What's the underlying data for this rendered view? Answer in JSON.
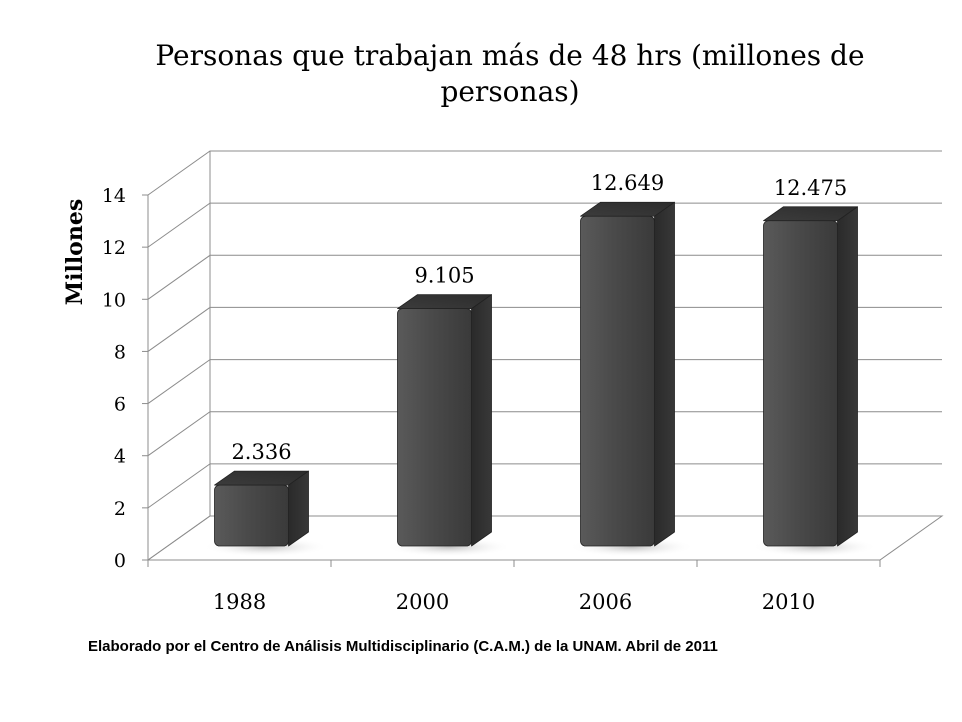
{
  "chart_data": {
    "type": "bar",
    "title": "Personas que trabajan más de 48 hrs (millones de personas)",
    "ylabel": "Millones",
    "xlabel": "",
    "categories": [
      "1988",
      "2000",
      "2006",
      "2010"
    ],
    "values": [
      2.336,
      9.105,
      12.649,
      12.475
    ],
    "data_labels": [
      "2.336",
      "9.105",
      "12.649",
      "12.475"
    ],
    "ylim": [
      0,
      14
    ],
    "yticks": [
      "0",
      "2",
      "4",
      "6",
      "8",
      "10",
      "12",
      "14"
    ],
    "grid": true,
    "style": "3d-columns",
    "bar_color": "#4a4a4a"
  },
  "footnote": "Elaborado por el Centro de Análisis Multidisciplinario (C.A.M.) de la UNAM. Abril de 2011"
}
